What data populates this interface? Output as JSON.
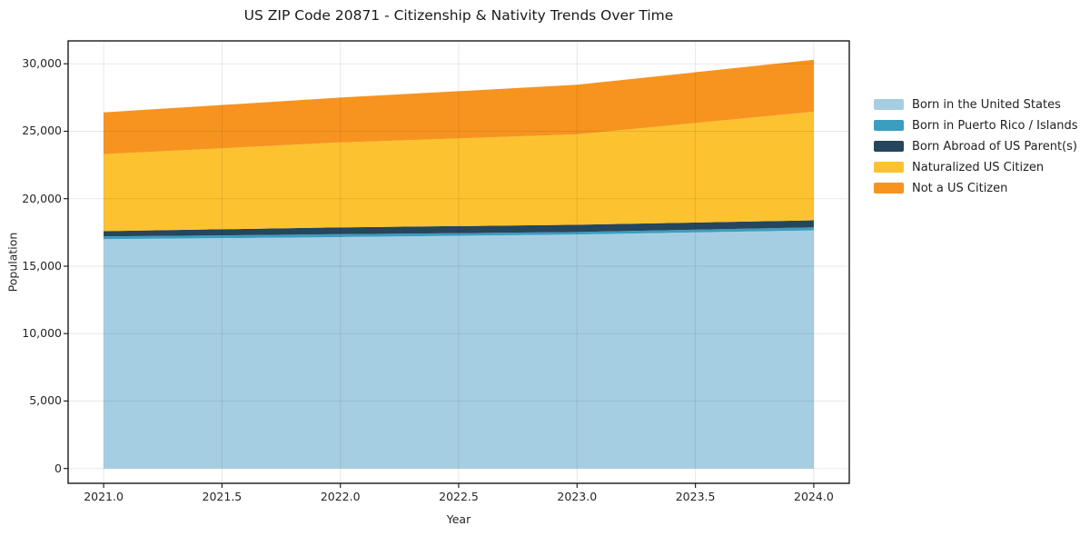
{
  "title": "US ZIP Code 20871 - Citizenship & Nativity Trends Over Time",
  "chart_data": {
    "type": "area",
    "stacked": true,
    "title": "US ZIP Code 20871 - Citizenship & Nativity Trends Over Time",
    "xlabel": "Year",
    "ylabel": "Population",
    "x": [
      2021,
      2022,
      2023,
      2024
    ],
    "series": [
      {
        "name": "Born in the United States",
        "color": "#a6cee3",
        "values": [
          17000,
          17150,
          17350,
          17650
        ]
      },
      {
        "name": "Born in Puerto Rico / Islands",
        "color": "#3b9ec1",
        "values": [
          200,
          220,
          180,
          230
        ]
      },
      {
        "name": "Born Abroad of US Parent(s)",
        "color": "#25465c",
        "values": [
          400,
          500,
          540,
          520
        ]
      },
      {
        "name": "Naturalized US Citizen",
        "color": "#fdc230",
        "values": [
          5700,
          6300,
          6700,
          8050
        ]
      },
      {
        "name": "Not a US Citizen",
        "color": "#f7941f",
        "values": [
          3100,
          3330,
          3680,
          3850
        ]
      }
    ],
    "totals": [
      26400,
      27500,
      28450,
      30300
    ],
    "xlim": [
      2020.85,
      2024.15
    ],
    "ylim": [
      -1100,
      31700
    ],
    "xticks": [
      2021.0,
      2021.5,
      2022.0,
      2022.5,
      2023.0,
      2023.5,
      2024.0
    ],
    "xtick_labels": [
      "2021.0",
      "2021.5",
      "2022.0",
      "2022.5",
      "2023.0",
      "2023.5",
      "2024.0"
    ],
    "yticks": [
      0,
      5000,
      10000,
      15000,
      20000,
      25000,
      30000
    ],
    "ytick_labels": [
      "0",
      "5,000",
      "10,000",
      "15,000",
      "20,000",
      "25,000",
      "30,000"
    ],
    "grid": true,
    "legend_position": "right"
  }
}
